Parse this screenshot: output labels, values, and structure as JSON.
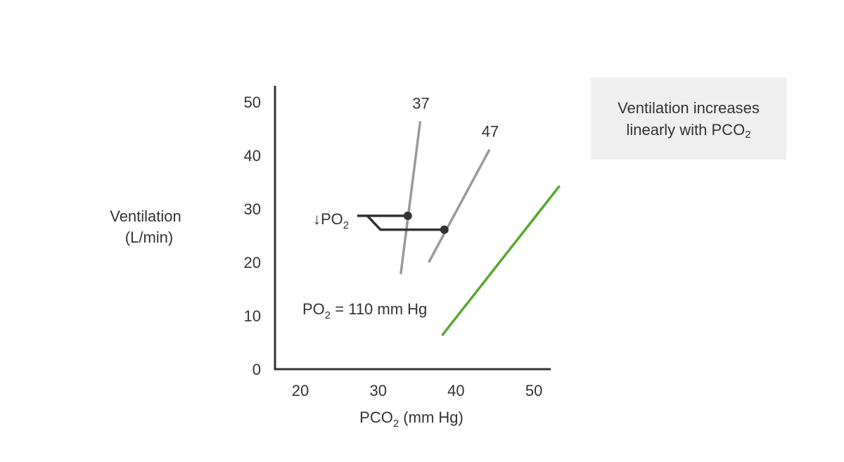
{
  "chart_data": {
    "type": "line",
    "xlabel": "PCO",
    "xlabel_sub": "2",
    "xlabel_unit": " (mm Hg)",
    "ylabel_line1": "Ventilation",
    "ylabel_line2": "(L/min)",
    "xlim": [
      17,
      53
    ],
    "ylim": [
      0,
      53
    ],
    "xticks": [
      20,
      30,
      40,
      50
    ],
    "yticks": [
      0,
      10,
      20,
      30,
      40,
      50
    ],
    "grid": false,
    "series": [
      {
        "name": "PO2 = 110 mm Hg",
        "color": "#5aa632",
        "points": [
          [
            38.2,
            6.3
          ],
          [
            53.3,
            34.3
          ]
        ]
      },
      {
        "name": "37",
        "color": "#9a9a9a",
        "points": [
          [
            32.9,
            17.8
          ],
          [
            35.4,
            46.4
          ]
        ]
      },
      {
        "name": "47",
        "color": "#9a9a9a",
        "points": [
          [
            36.5,
            20.0
          ],
          [
            44.3,
            41.1
          ]
        ]
      }
    ],
    "markers": [
      [
        33.8,
        28.7
      ],
      [
        38.5,
        26.1
      ]
    ],
    "po2_bracket": {
      "color": "#333333",
      "upper": [
        [
          27.3,
          28.7
        ],
        [
          33.8,
          28.7
        ]
      ],
      "lower": [
        [
          28.6,
          28.7
        ],
        [
          30.3,
          26.1
        ],
        [
          38.5,
          26.1
        ]
      ]
    },
    "annotations": {
      "decrease_po2": {
        "arrow": "↓",
        "text": "PO",
        "sub": "2"
      },
      "baseline": {
        "text": "PO",
        "sub": "2",
        "rest": " = 110 mm Hg"
      }
    }
  },
  "note": {
    "line1": "Ventilation increases",
    "line2": "linearly with PCO",
    "line2_sub": "2"
  }
}
